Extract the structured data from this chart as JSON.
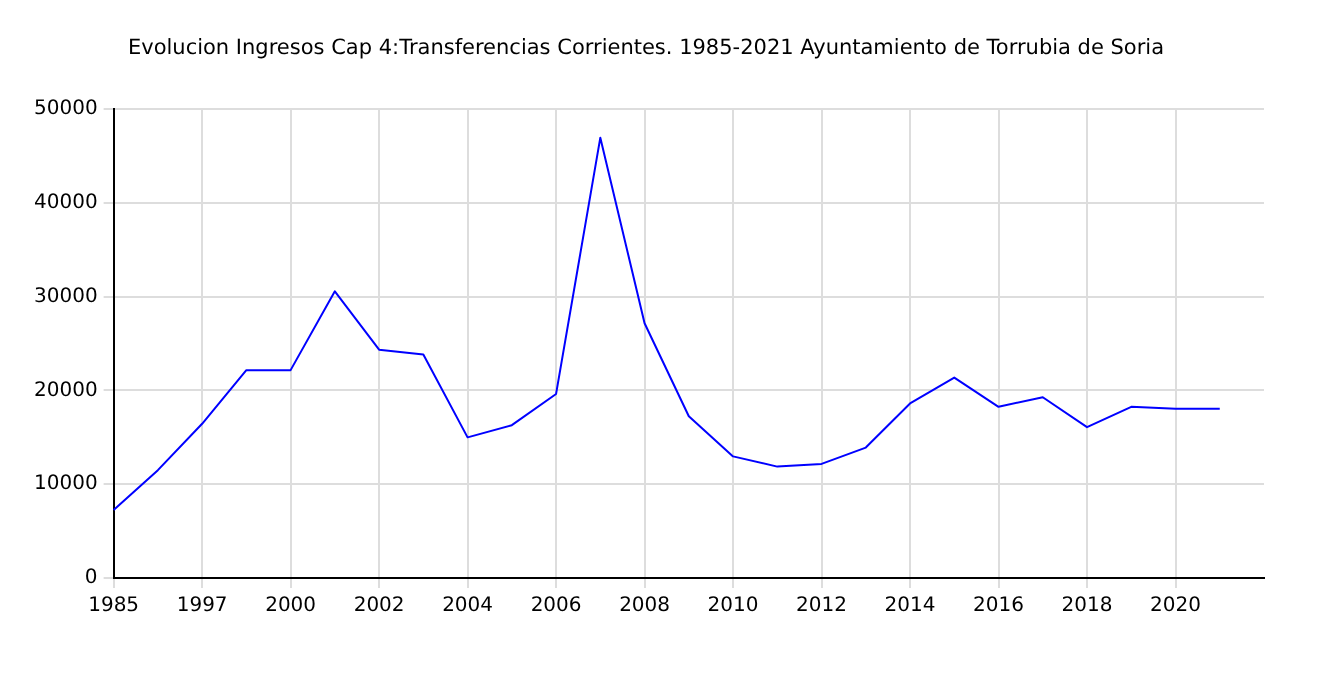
{
  "chart_data": {
    "type": "line",
    "title": "Evolucion Ingresos Cap 4:Transferencias Corrientes. 1985-2021 Ayuntamiento de Torrubia de Soria",
    "categories": [
      "1985",
      null,
      "1997",
      null,
      "2000",
      null,
      "2002",
      null,
      "2004",
      null,
      "2006",
      null,
      "2008",
      null,
      "2010",
      null,
      "2012",
      null,
      "2014",
      null,
      "2016",
      null,
      "2018",
      null,
      "2020",
      null,
      null
    ],
    "series": [
      {
        "color": "#0000ff",
        "values": [
          7250,
          11500,
          16450,
          22170,
          22170,
          30580,
          24350,
          23840,
          15000,
          16300,
          19630,
          46960,
          27170,
          17250,
          12970,
          11880,
          12170,
          13910,
          18620,
          21380,
          18260,
          19280,
          16090,
          18260,
          18040,
          18040,
          null
        ]
      }
    ],
    "ylim": [
      0,
      50000
    ],
    "yticks": [
      0,
      10000,
      20000,
      30000,
      40000,
      50000
    ],
    "grid": true,
    "legend": false,
    "marker": "none",
    "line_style": "solid"
  }
}
